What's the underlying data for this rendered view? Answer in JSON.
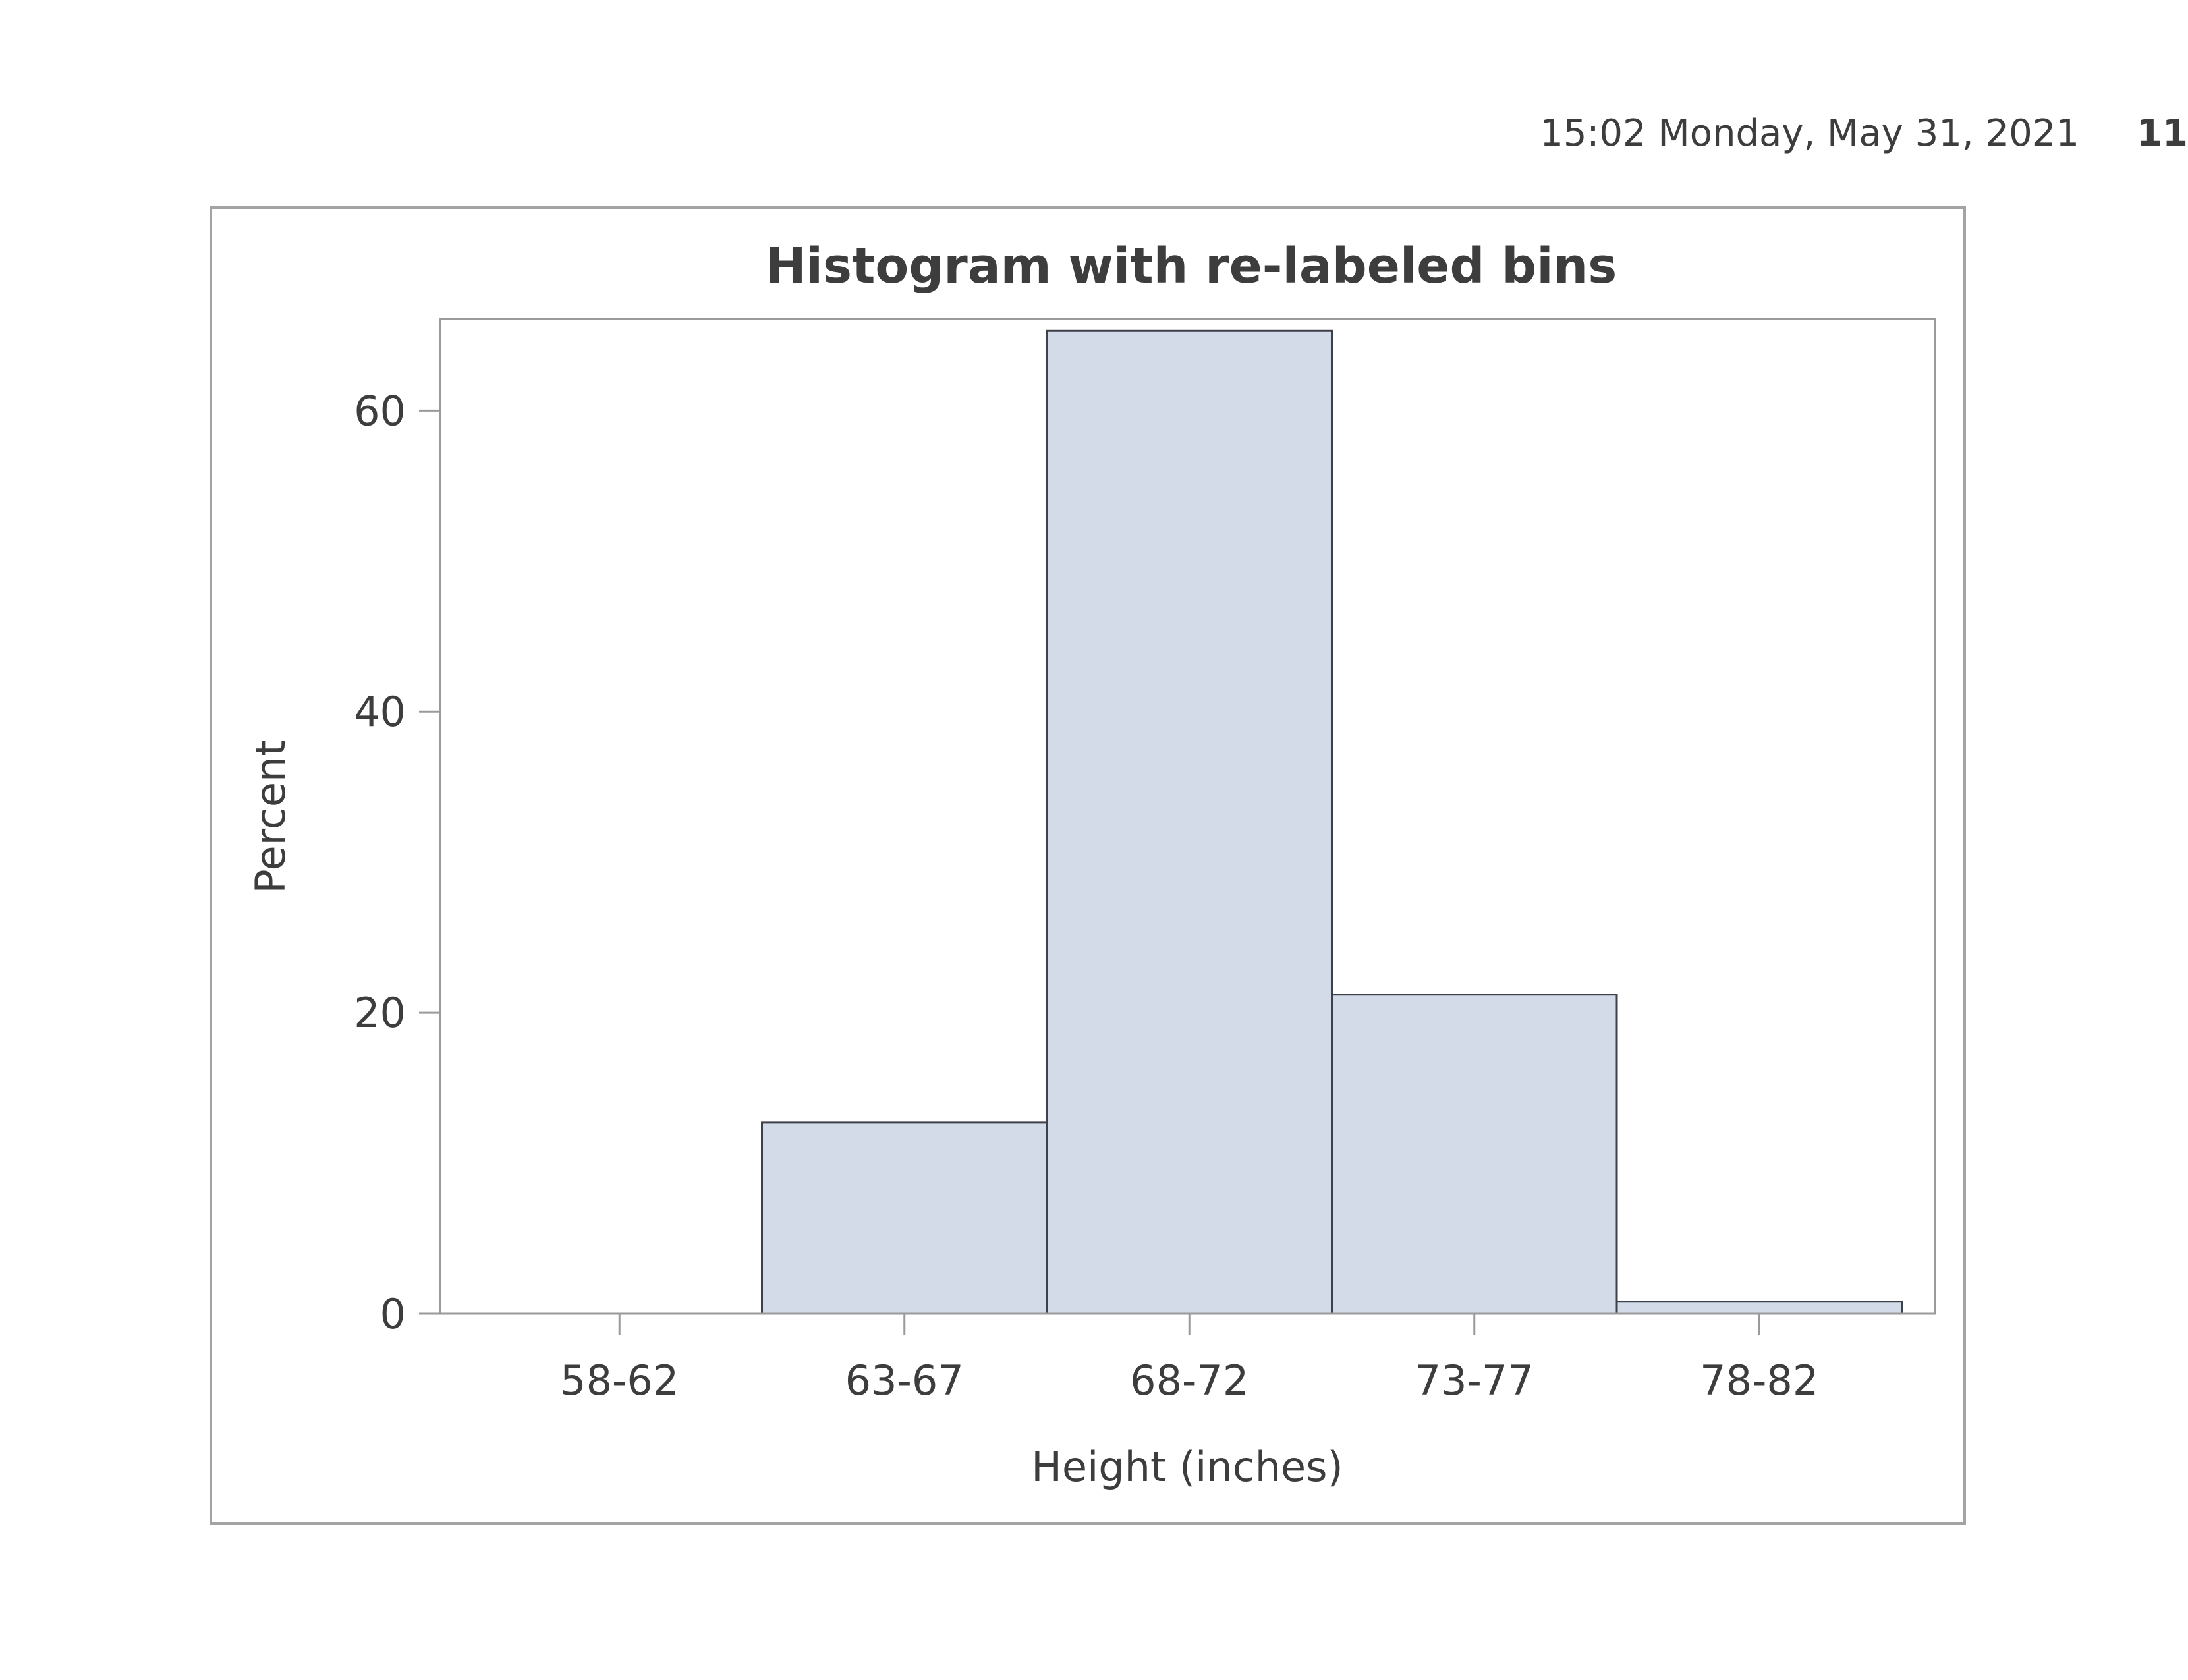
{
  "header": {
    "timestamp": "15:02 Monday, May 31, 2021",
    "page_number": "11"
  },
  "colors": {
    "bar_fill": "#d3dae8",
    "bar_stroke": "#3d4149",
    "axis": "#9a9a9a",
    "frame": "#a3a3a3",
    "text": "#3d3d3d"
  },
  "chart_data": {
    "type": "bar",
    "title": "Histogram with re-labeled bins",
    "xlabel": "Height (inches)",
    "ylabel": "Percent",
    "categories": [
      "58-62",
      "63-67",
      "68-72",
      "73-77",
      "78-82"
    ],
    "values": [
      0,
      12.7,
      65.3,
      21.2,
      0.8
    ],
    "ylim": [
      0,
      66.1
    ],
    "yticks": [
      0,
      20,
      40,
      60
    ],
    "grid": false,
    "legend": "none"
  }
}
